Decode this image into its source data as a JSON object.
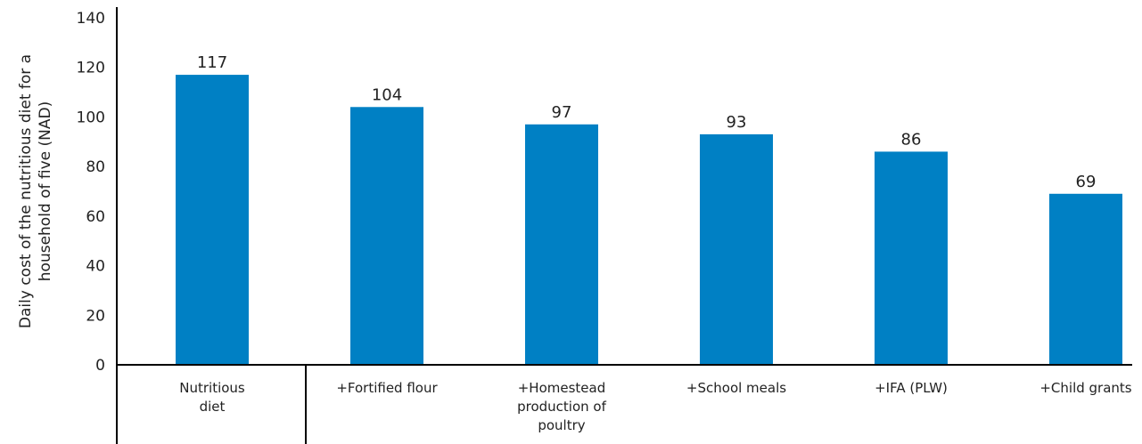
{
  "chart_data": {
    "type": "bar",
    "categories": [
      [
        "Nutritious",
        "diet"
      ],
      [
        "+Fortified flour"
      ],
      [
        "+Homestead",
        "production of",
        "poultry"
      ],
      [
        "+School meals"
      ],
      [
        "+IFA (PLW)"
      ],
      [
        "+Child grants"
      ]
    ],
    "values": [
      117,
      104,
      97,
      93,
      86,
      69
    ],
    "data_labels": [
      "117",
      "104",
      "97",
      "93",
      "86",
      "69"
    ],
    "ylabel": [
      "Daily cost of the nutritious diet for a",
      "household of five (NAD)"
    ],
    "ylim": [
      0,
      140
    ],
    "yticks": [
      0,
      20,
      40,
      60,
      80,
      100,
      120,
      140
    ],
    "grid": false,
    "legend": "none",
    "bar_color": "#0080C4",
    "axis_color": "#000000"
  }
}
